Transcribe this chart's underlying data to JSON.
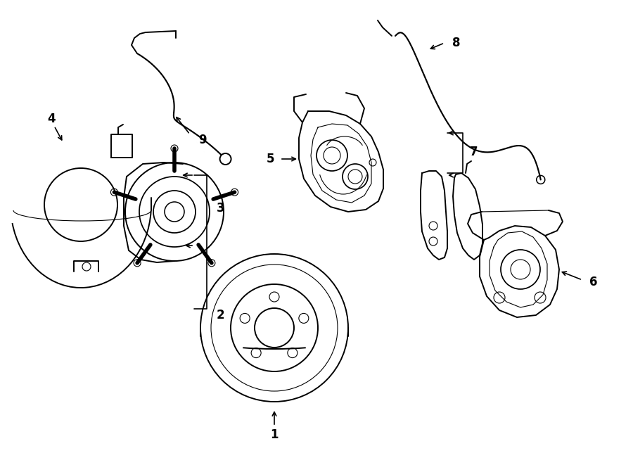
{
  "bg_color": "#ffffff",
  "line_color": "#000000",
  "lw": 1.4,
  "tlw": 0.8,
  "fig_width": 9.0,
  "fig_height": 6.61,
  "dpi": 100
}
